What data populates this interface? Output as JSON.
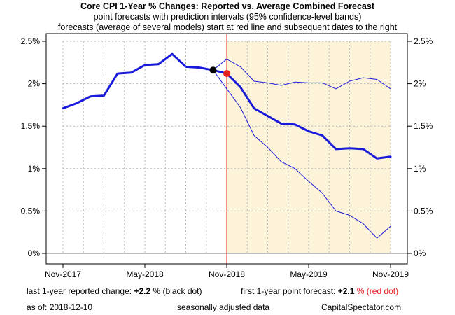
{
  "titles": {
    "main": "Core CPI 1-Year % Changes: Reported vs. Average Combined Forecast",
    "line2": "point forecasts with prediction intervals (95% confidence-level bands)",
    "line3": "forecasts (average of several models) start at red line and subsequent dates to the right"
  },
  "footer": {
    "reported_label": "last 1-year reported change:",
    "reported_value": "+2.2",
    "reported_suffix": "% (black dot)",
    "forecast_label": "first 1-year point forecast:",
    "forecast_value": "+2.1",
    "forecast_suffix": "% (red dot)",
    "asof_label": "as of:",
    "asof_value": "2018-12-10",
    "note": "seasonally adjusted data",
    "source": "CapitalSpectator.com"
  },
  "colors": {
    "series": "#1a1adb",
    "divider": "#e8211c",
    "forecast_band": "#fdf3d8",
    "grid": "#b4b4b4",
    "zero_line": "#aaaaaa"
  },
  "chart_data": {
    "type": "line",
    "x_ticks": [
      "Nov-2017",
      "May-2018",
      "Nov-2018",
      "May-2019",
      "Nov-2019"
    ],
    "y_ticks": [
      "0%",
      "0.5%",
      "1%",
      "1.5%",
      "2%",
      "2.5%"
    ],
    "ylim": [
      0,
      2.5
    ],
    "forecast_start": "Nov-2018",
    "grid": true,
    "series": [
      {
        "role": "reported",
        "x": [
          "2017-11",
          "2017-12",
          "2018-01",
          "2018-02",
          "2018-03",
          "2018-04",
          "2018-05",
          "2018-06",
          "2018-07",
          "2018-08",
          "2018-09",
          "2018-10"
        ],
        "values": [
          1.71,
          1.77,
          1.85,
          1.86,
          2.12,
          2.13,
          2.22,
          2.23,
          2.35,
          2.2,
          2.19,
          2.16
        ]
      },
      {
        "role": "forecast",
        "x": [
          "2018-10",
          "2018-11",
          "2018-12",
          "2019-01",
          "2019-02",
          "2019-03",
          "2019-04",
          "2019-05",
          "2019-06",
          "2019-07",
          "2019-08",
          "2019-09",
          "2019-10",
          "2019-11"
        ],
        "values": [
          2.16,
          2.12,
          1.96,
          1.71,
          1.62,
          1.53,
          1.52,
          1.44,
          1.39,
          1.23,
          1.24,
          1.23,
          1.12,
          1.14
        ]
      },
      {
        "role": "upper-band",
        "x": [
          "2018-10",
          "2018-11",
          "2018-12",
          "2019-01",
          "2019-02",
          "2019-03",
          "2019-04",
          "2019-05",
          "2019-06",
          "2019-07",
          "2019-08",
          "2019-09",
          "2019-10",
          "2019-11"
        ],
        "values": [
          2.16,
          2.29,
          2.2,
          2.03,
          2.01,
          1.98,
          2.02,
          2.01,
          2.01,
          1.94,
          2.03,
          2.07,
          2.05,
          1.94
        ]
      },
      {
        "role": "lower-band",
        "x": [
          "2018-10",
          "2018-11",
          "2018-12",
          "2019-01",
          "2019-02",
          "2019-03",
          "2019-04",
          "2019-05",
          "2019-06",
          "2019-07",
          "2019-08",
          "2019-09",
          "2019-10",
          "2019-11"
        ],
        "values": [
          2.16,
          1.94,
          1.72,
          1.39,
          1.25,
          1.08,
          1.0,
          0.85,
          0.71,
          0.5,
          0.45,
          0.35,
          0.18,
          0.32
        ]
      }
    ],
    "markers": [
      {
        "role": "last-reported",
        "x": "2018-10",
        "value": 2.16,
        "color": "#000000"
      },
      {
        "role": "first-forecast",
        "x": "2018-11",
        "value": 2.12,
        "color": "#e8211c"
      }
    ]
  }
}
